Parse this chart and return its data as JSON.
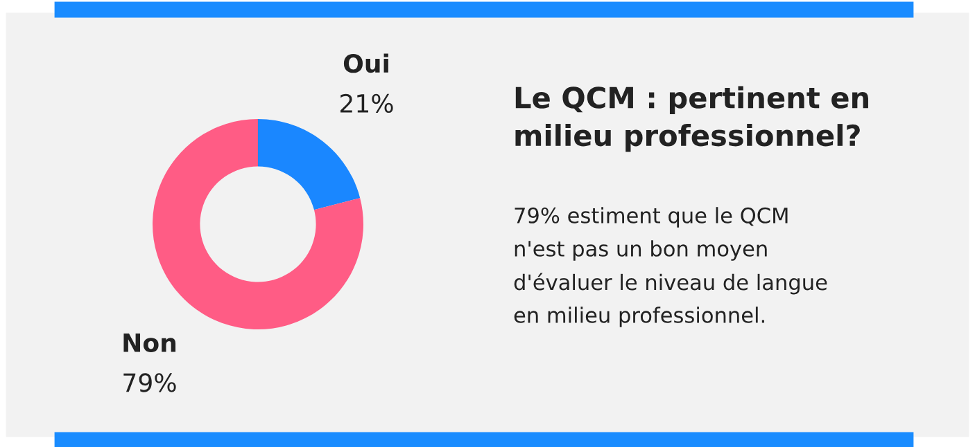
{
  "chart_data": {
    "type": "donut",
    "title": "Le QCM : pertinent en\nmilieu professionnel?",
    "categories": [
      "Oui",
      "Non"
    ],
    "values": [
      21,
      79
    ],
    "colors": [
      "#1a87ff",
      "#ff5c85"
    ],
    "value_labels": [
      "21%",
      "79%"
    ],
    "annotations": [
      "79% estiment que le QCM",
      "n'est pas un bon moyen",
      "d'évaluer le niveau de langue",
      "en milieu professionnel."
    ]
  }
}
